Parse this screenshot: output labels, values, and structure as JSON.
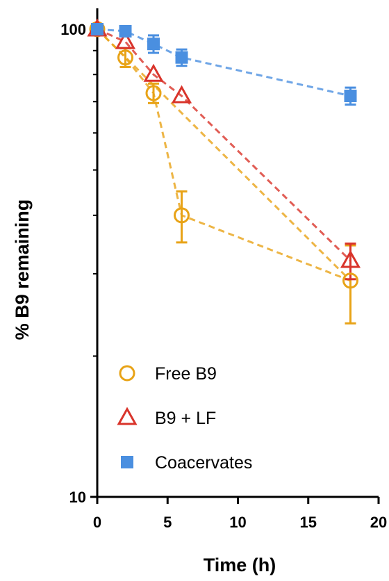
{
  "chart_data": {
    "type": "scatter",
    "xlabel": "Time (h)",
    "ylabel": "% B9 remaining",
    "xlim": [
      0,
      20
    ],
    "ylim": [
      10,
      100
    ],
    "y_scale": "log",
    "x_ticks": [
      0,
      5,
      10,
      15,
      20
    ],
    "y_ticks": [
      10,
      100
    ],
    "x_tick_labels": [
      "0",
      "5",
      "10",
      "15",
      "20"
    ],
    "y_tick_labels": [
      "10",
      "100"
    ],
    "grid": false,
    "legend_position": "bottom-left",
    "series": [
      {
        "name": "Free B9",
        "marker": "circle-open",
        "color": "#E8A317",
        "line": "dashed",
        "x": [
          0,
          2,
          4,
          6,
          18
        ],
        "y": [
          100,
          87,
          73,
          40,
          29
        ],
        "err": [
          0,
          4,
          3.5,
          5,
          5.5
        ],
        "fit_line": {
          "x": [
            0,
            18
          ],
          "y": [
            100,
            29
          ]
        }
      },
      {
        "name": "B9 + LF",
        "marker": "triangle-open",
        "color": "#D9342B",
        "line": "dashed",
        "x": [
          0,
          2,
          4,
          6,
          18
        ],
        "y": [
          100,
          94,
          80,
          72,
          32
        ],
        "err": [
          0,
          0,
          0,
          0,
          2.8
        ]
      },
      {
        "name": "Coacervates",
        "marker": "square-filled",
        "color": "#4A8FE0",
        "line": "dashed",
        "x": [
          0,
          2,
          4,
          6,
          18
        ],
        "y": [
          100,
          99,
          93,
          87,
          72
        ],
        "err": [
          0,
          0,
          4,
          3.5,
          3
        ]
      }
    ]
  }
}
